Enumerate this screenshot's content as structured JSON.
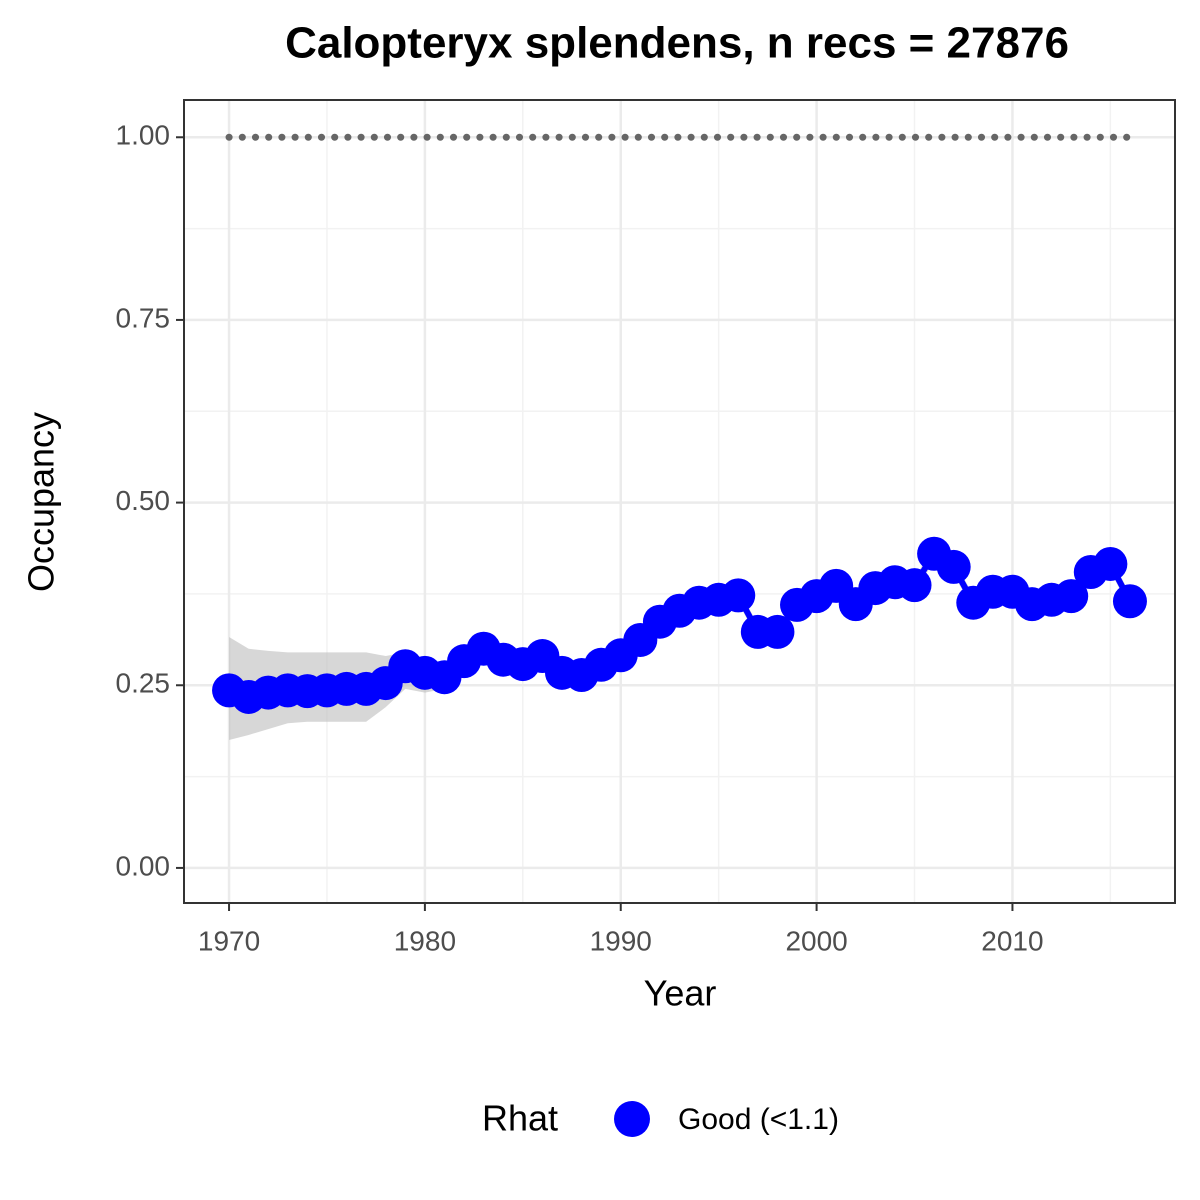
{
  "chart_data": {
    "type": "line",
    "title": "Calopteryx splendens, n recs = 27876",
    "x_label": "Year",
    "y_label": "Occupancy",
    "x": [
      1970,
      1971,
      1972,
      1973,
      1974,
      1975,
      1976,
      1977,
      1978,
      1979,
      1980,
      1981,
      1982,
      1983,
      1984,
      1985,
      1986,
      1987,
      1988,
      1989,
      1990,
      1991,
      1992,
      1993,
      1994,
      1995,
      1996,
      1997,
      1998,
      1999,
      2000,
      2001,
      2002,
      2003,
      2004,
      2005,
      2006,
      2007,
      2008,
      2009,
      2010,
      2011,
      2012,
      2013,
      2014,
      2015,
      2016
    ],
    "series": [
      {
        "name": "Good (<1.1)",
        "color": "#0000ff",
        "values": [
          0.243,
          0.234,
          0.24,
          0.243,
          0.242,
          0.243,
          0.245,
          0.245,
          0.253,
          0.276,
          0.267,
          0.261,
          0.283,
          0.3,
          0.285,
          0.279,
          0.29,
          0.267,
          0.264,
          0.278,
          0.291,
          0.312,
          0.337,
          0.352,
          0.363,
          0.367,
          0.373,
          0.323,
          0.323,
          0.36,
          0.372,
          0.386,
          0.361,
          0.383,
          0.391,
          0.387,
          0.43,
          0.412,
          0.363,
          0.378,
          0.378,
          0.361,
          0.367,
          0.372,
          0.405,
          0.416,
          0.365
        ],
        "lower": [
          0.175,
          0.182,
          0.19,
          0.198,
          0.2,
          0.2,
          0.2,
          0.2,
          0.22,
          0.245,
          0.24,
          0.245,
          0.27,
          0.29,
          0.275,
          0.27,
          0.28,
          0.257,
          0.254,
          0.268,
          0.281,
          0.302,
          0.327,
          0.342,
          0.353,
          0.357,
          0.363,
          0.313,
          0.313,
          0.35,
          0.362,
          0.376,
          0.351,
          0.373,
          0.381,
          0.377,
          0.42,
          0.402,
          0.353,
          0.368,
          0.368,
          0.351,
          0.357,
          0.362,
          0.395,
          0.406,
          0.355
        ],
        "upper": [
          0.316,
          0.3,
          0.297,
          0.295,
          0.295,
          0.295,
          0.295,
          0.295,
          0.29,
          0.295,
          0.285,
          0.275,
          0.293,
          0.31,
          0.295,
          0.289,
          0.3,
          0.277,
          0.274,
          0.288,
          0.301,
          0.322,
          0.347,
          0.362,
          0.373,
          0.377,
          0.383,
          0.333,
          0.333,
          0.37,
          0.382,
          0.396,
          0.371,
          0.393,
          0.401,
          0.397,
          0.44,
          0.422,
          0.373,
          0.388,
          0.388,
          0.371,
          0.377,
          0.382,
          0.415,
          0.426,
          0.375
        ]
      }
    ],
    "ribbon_color": "#bdbdbd",
    "reference_line": {
      "value": 1,
      "color": "#666666"
    },
    "xlim": [
      1967.7,
      2018.3
    ],
    "ylim": [
      -0.048,
      1.051
    ],
    "xticks": [
      1970,
      1980,
      1990,
      2000,
      2010
    ],
    "yticks": [
      {
        "value": 0,
        "label": "0.00"
      },
      {
        "value": 0.25,
        "label": "0.25"
      },
      {
        "value": 0.5,
        "label": "0.50"
      },
      {
        "value": 0.75,
        "label": "0.75"
      },
      {
        "value": 1,
        "label": "1.00"
      }
    ],
    "grid": true,
    "legend_title": "Rhat",
    "legend_position": "bottom"
  }
}
